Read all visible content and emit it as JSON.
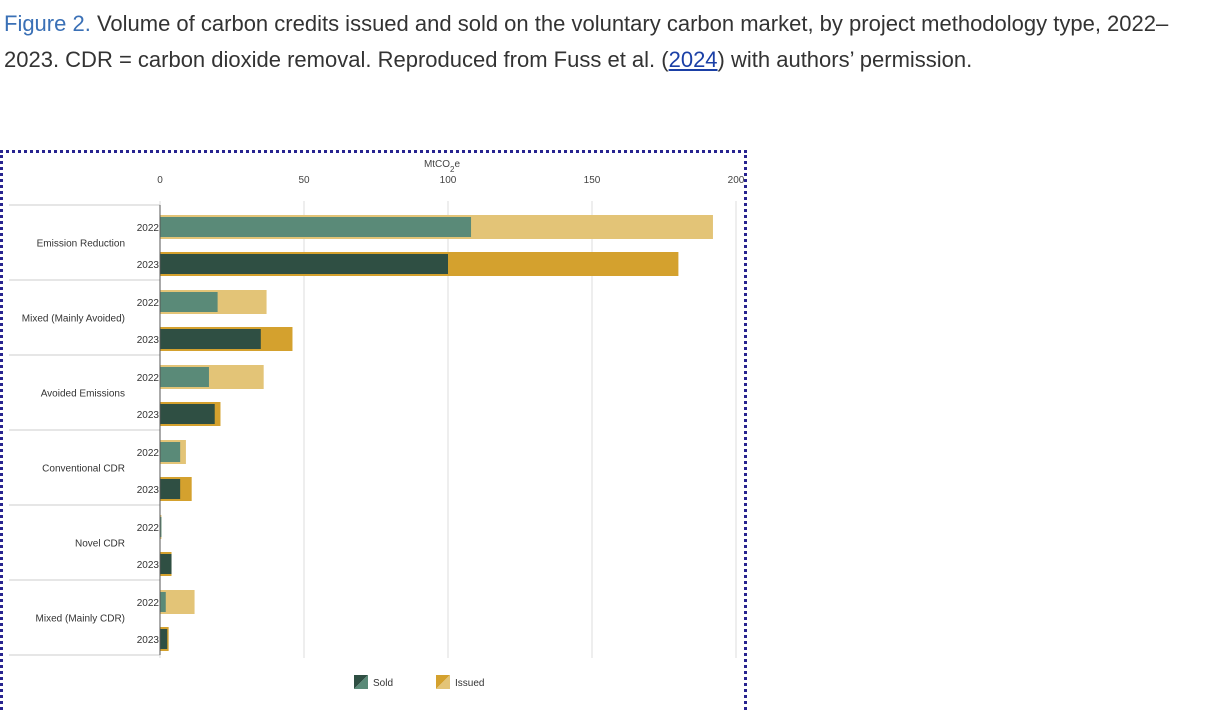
{
  "caption": {
    "figure_label": "Figure 2.",
    "text_before_link": " Volume of carbon credits issued and sold on the voluntary carbon market, by project methodology type, 2022–2023. CDR = carbon dioxide removal. Reproduced from Fuss et al. (",
    "link_text": "2024",
    "text_after_link": ") with authors’ permission."
  },
  "colors": {
    "sold_2022": "#5a8a78",
    "sold_2023": "#2f4f43",
    "issued_2022": "#e3c477",
    "issued_2023": "#d4a12e",
    "gridline": "#dddddd",
    "frame": "#27238f"
  },
  "chart_data": {
    "type": "bar",
    "orientation": "horizontal",
    "axis_title": "MtCO2e",
    "xlim": [
      0,
      200
    ],
    "xticks": [
      0,
      50,
      100,
      150,
      200
    ],
    "grid": true,
    "legend_position": "bottom",
    "legend": [
      "Sold",
      "Issued"
    ],
    "categories": [
      "Emission Reduction",
      "Mixed (Mainly Avoided)",
      "Avoided Emissions",
      "Conventional CDR",
      "Novel CDR",
      "Mixed (Mainly CDR)"
    ],
    "years": [
      "2022",
      "2023"
    ],
    "series": [
      {
        "name": "Sold",
        "year": "2022",
        "values": [
          108,
          20,
          17,
          7,
          0.5,
          2
        ]
      },
      {
        "name": "Sold",
        "year": "2023",
        "values": [
          100,
          35,
          19,
          7,
          4,
          2.5
        ]
      },
      {
        "name": "Issued",
        "year": "2022",
        "values": [
          192,
          37,
          36,
          9,
          0.5,
          12
        ]
      },
      {
        "name": "Issued",
        "year": "2023",
        "values": [
          180,
          46,
          21,
          11,
          4,
          3
        ]
      }
    ]
  }
}
